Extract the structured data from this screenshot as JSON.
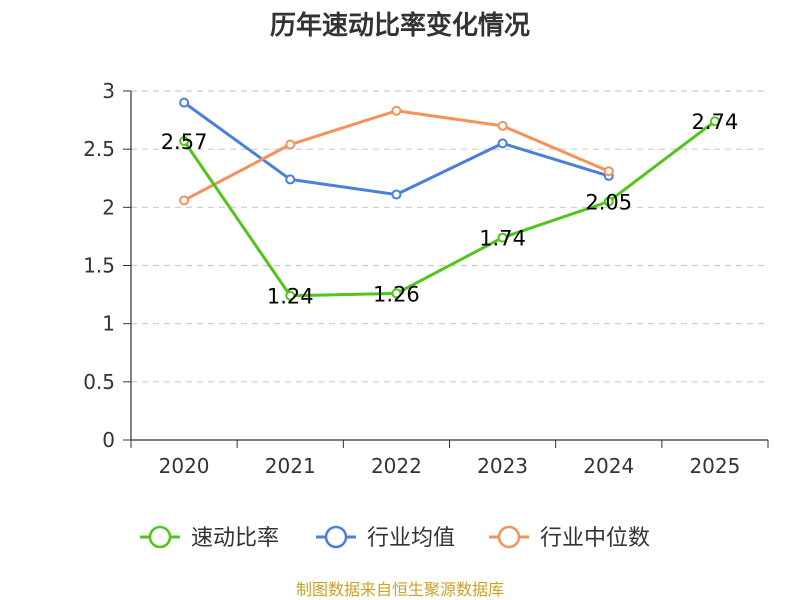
{
  "chart_data": {
    "type": "line",
    "title": "历年速动比率变化情况",
    "x": [
      "2020",
      "2021",
      "2022",
      "2023",
      "2024",
      "2025"
    ],
    "ylim": [
      0,
      3
    ],
    "yticks": [
      "0",
      "0.5",
      "1",
      "1.5",
      "2",
      "2.5",
      "3"
    ],
    "grid": "horizontal-dashed",
    "legend_position": "bottom",
    "series": [
      {
        "name": "速动比率",
        "color": "#52c41a",
        "values": [
          2.57,
          1.24,
          1.26,
          1.74,
          2.05,
          2.74
        ],
        "labels": [
          "2.57",
          "1.24",
          "1.26",
          "1.74",
          "2.05",
          "2.74"
        ]
      },
      {
        "name": "行业均值",
        "color": "#4a7fdc",
        "values": [
          2.9,
          2.24,
          2.11,
          2.55,
          2.27,
          null
        ]
      },
      {
        "name": "行业中位数",
        "color": "#f5925a",
        "values": [
          2.06,
          2.54,
          2.83,
          2.7,
          2.31,
          null
        ]
      }
    ],
    "source": "制图数据来自恒生聚源数据库"
  }
}
